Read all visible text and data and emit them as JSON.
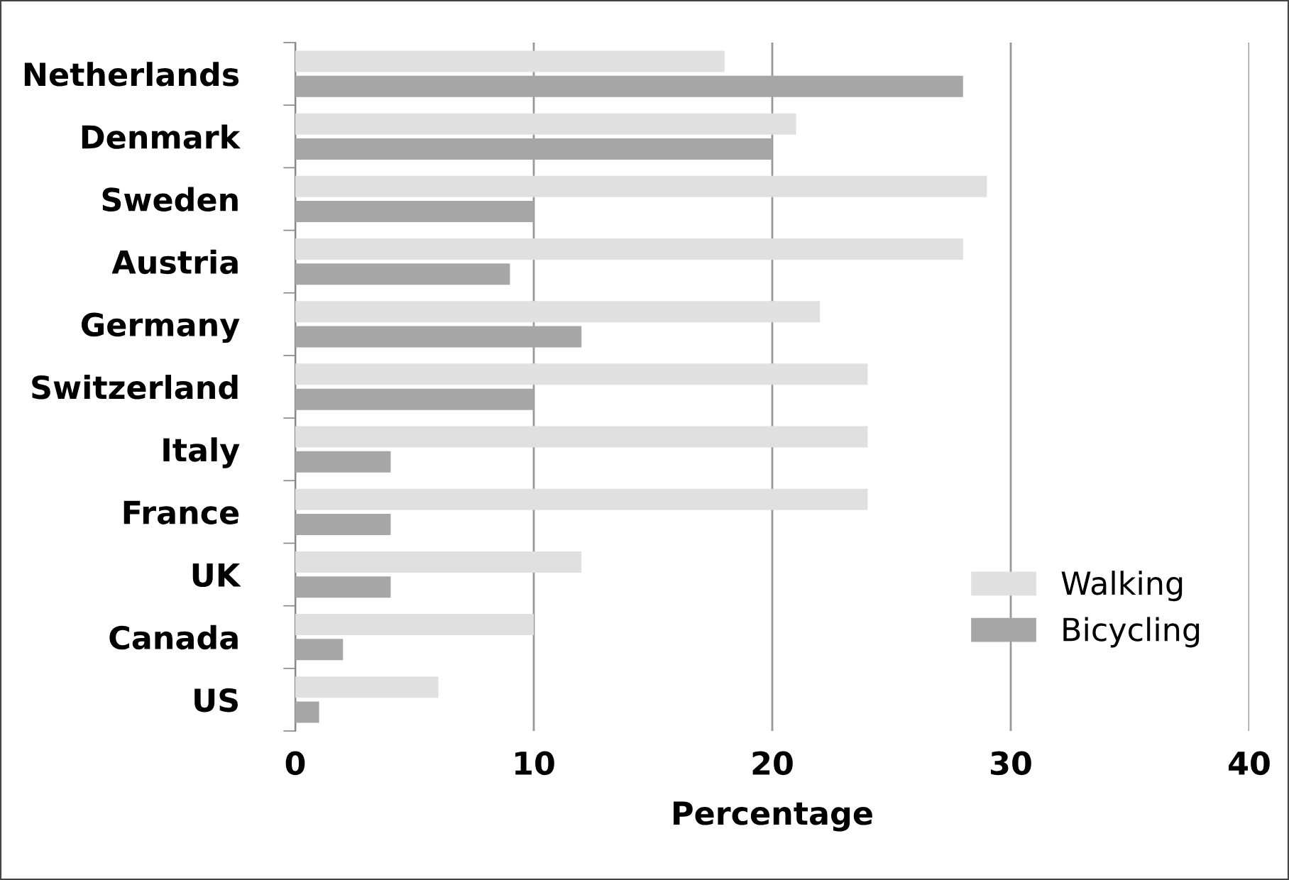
{
  "chart_data": {
    "type": "bar",
    "orientation": "horizontal",
    "xlabel": "Percentage",
    "categories": [
      "Netherlands",
      "Denmark",
      "Sweden",
      "Austria",
      "Germany",
      "Switzerland",
      "Italy",
      "France",
      "UK",
      "Canada",
      "US"
    ],
    "series": [
      {
        "name": "Walking",
        "color": "#e0e0e0",
        "values": [
          18,
          21,
          29,
          28,
          22,
          24,
          24,
          24,
          12,
          10,
          6
        ]
      },
      {
        "name": "Bicycling",
        "color": "#a6a6a6",
        "values": [
          28,
          20,
          10,
          9,
          12,
          10,
          4,
          4,
          4,
          2,
          1
        ]
      }
    ],
    "xlim": [
      0,
      40
    ],
    "xticks": [
      0,
      10,
      20,
      30,
      40
    ],
    "grid": "x",
    "legend": "bottom right"
  }
}
